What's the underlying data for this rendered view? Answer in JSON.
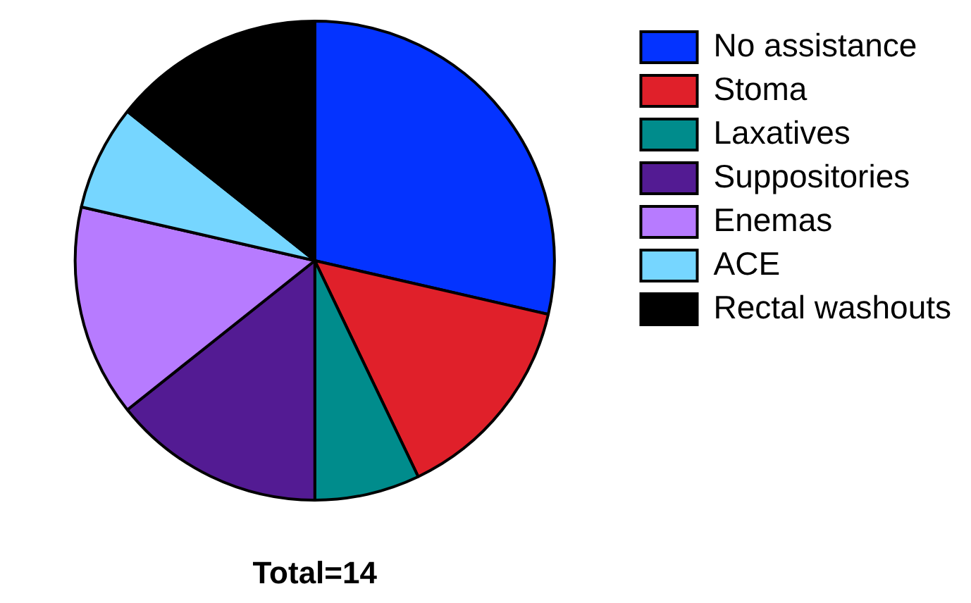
{
  "chart_data": {
    "type": "pie",
    "categories": [
      "No assistance",
      "Stoma",
      "Laxatives",
      "Suppositories",
      "Enemas",
      "ACE",
      "Rectal washouts"
    ],
    "values": [
      28.6,
      14.3,
      7.1,
      14.3,
      14.3,
      7.1,
      14.3
    ],
    "colors": [
      "#0433ff",
      "#e0202a",
      "#008c8c",
      "#531b93",
      "#b77bff",
      "#76d6ff",
      "#000000"
    ],
    "legend": "top right",
    "annotations": [
      "Total=14"
    ]
  }
}
